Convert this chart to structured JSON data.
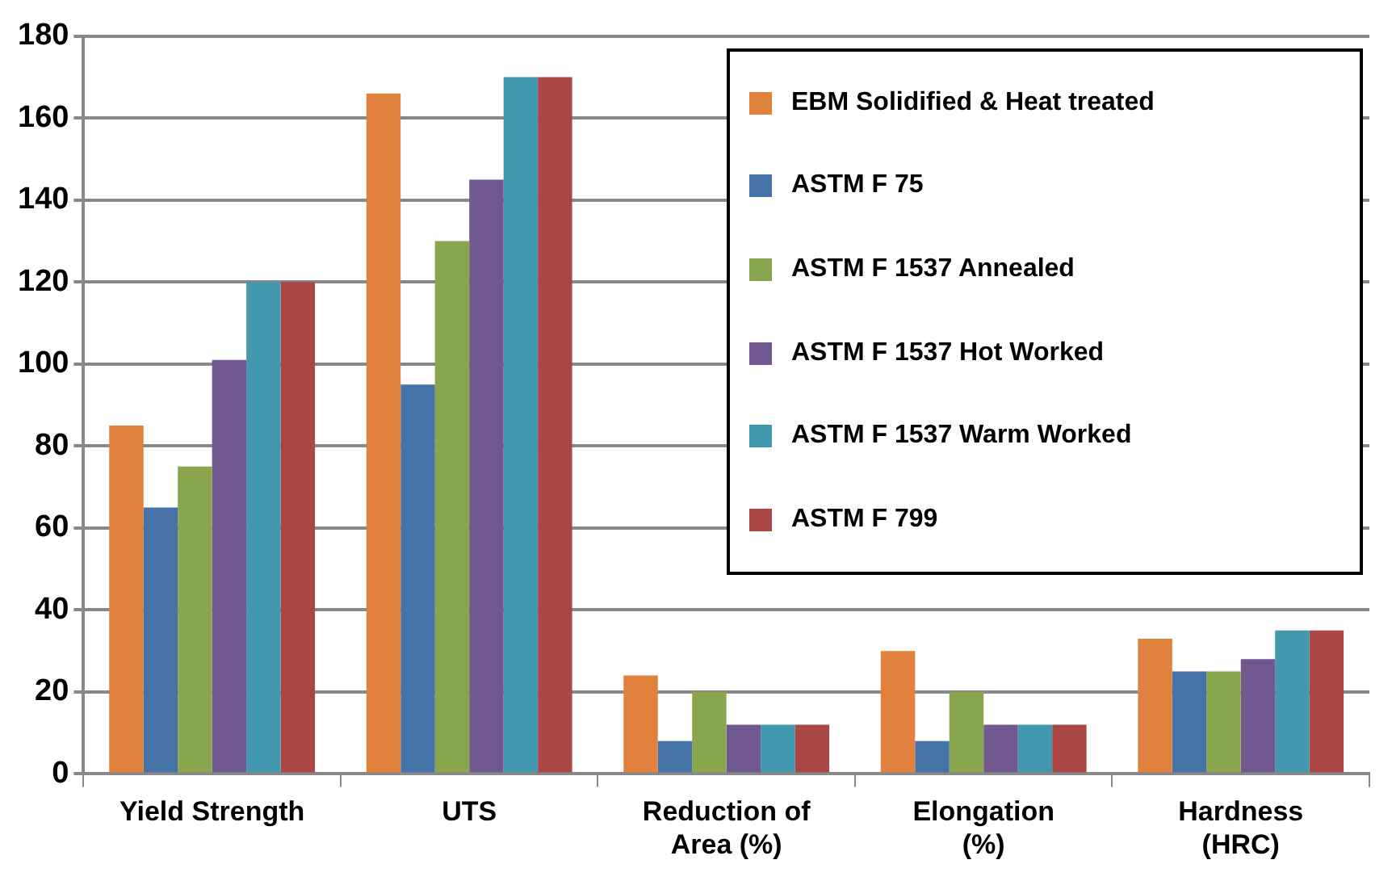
{
  "chart_data": {
    "type": "bar",
    "categories": [
      "Yield Strength",
      "UTS",
      "Reduction of\nArea (%)",
      "Elongation\n(%)",
      "Hardness\n(HRC)"
    ],
    "series": [
      {
        "name": "EBM Solidified & Heat treated",
        "color": "#e0823d",
        "values": [
          85,
          166,
          24,
          30,
          33
        ]
      },
      {
        "name": "ASTM F 75",
        "color": "#4572a7",
        "values": [
          65,
          95,
          8,
          8,
          25
        ]
      },
      {
        "name": "ASTM F 1537 Annealed",
        "color": "#89a54e",
        "values": [
          75,
          130,
          20,
          20,
          25
        ]
      },
      {
        "name": "ASTM F 1537 Hot Worked",
        "color": "#71588f",
        "values": [
          101,
          145,
          12,
          12,
          28
        ]
      },
      {
        "name": "ASTM F 1537 Warm Worked",
        "color": "#4198af",
        "values": [
          120,
          170,
          12,
          12,
          35
        ]
      },
      {
        "name": "ASTM F 799",
        "color": "#aa4643",
        "values": [
          120,
          170,
          12,
          12,
          35
        ]
      }
    ],
    "ylim": [
      0,
      180
    ],
    "yticks": [
      0,
      20,
      40,
      60,
      80,
      100,
      120,
      140,
      160,
      180
    ],
    "grid": "y",
    "legend": "top right"
  }
}
